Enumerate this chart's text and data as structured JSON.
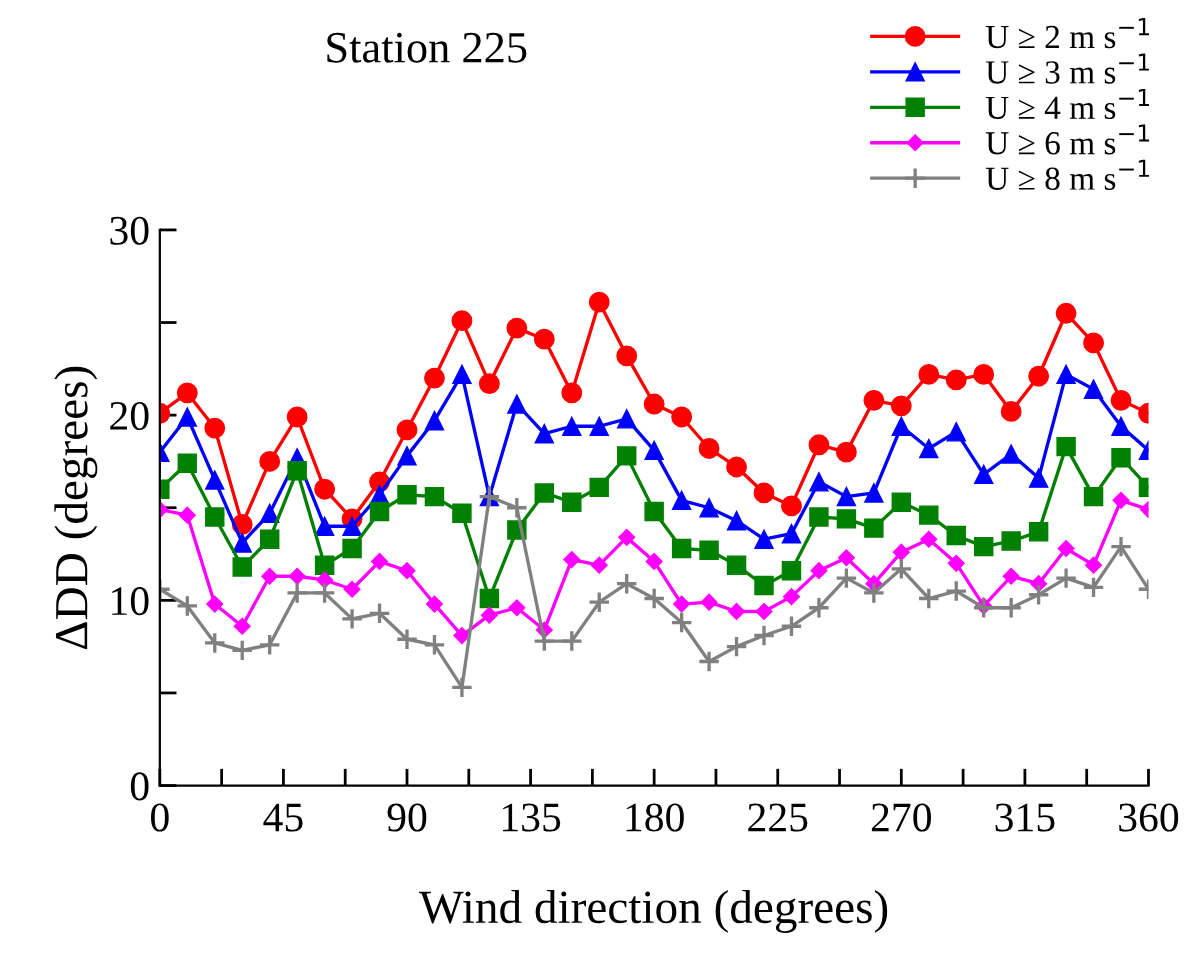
{
  "chart_data": {
    "type": "line",
    "title": "Station 225",
    "xlabel": "Wind direction (degrees)",
    "ylabel": "ΔDD (degrees)",
    "x": [
      0,
      10,
      20,
      30,
      40,
      50,
      60,
      70,
      80,
      90,
      100,
      110,
      120,
      130,
      140,
      150,
      160,
      170,
      180,
      190,
      200,
      210,
      220,
      230,
      240,
      250,
      260,
      270,
      280,
      290,
      300,
      310,
      320,
      330,
      340,
      350,
      360
    ],
    "xlim": [
      0,
      360
    ],
    "xticks": [
      0,
      {
        "value": 22.5,
        "label": null
      },
      45,
      {
        "value": 67.5,
        "label": null
      },
      90,
      {
        "value": 112.5,
        "label": null
      },
      135,
      {
        "value": 157.5,
        "label": null
      },
      180,
      {
        "value": 202.5,
        "label": null
      },
      225,
      {
        "value": 247.5,
        "label": null
      },
      270,
      {
        "value": 292.5,
        "label": null
      },
      315,
      {
        "value": 337.5,
        "label": null
      },
      360
    ],
    "ylim": [
      0,
      30
    ],
    "yticks": [
      0,
      {
        "value": 5,
        "label": null
      },
      10,
      {
        "value": 15,
        "label": null
      },
      20,
      {
        "value": 25,
        "label": null
      },
      30
    ],
    "grid": false,
    "legend": "top right",
    "line_style": "solid",
    "series": [
      {
        "name": "U ≥ 2 m s$^{−1}$",
        "color": "#ff0000",
        "marker": "circle",
        "values": [
          20.1,
          21.2,
          19.3,
          14.1,
          17.5,
          19.9,
          16.0,
          14.4,
          16.4,
          19.2,
          22.0,
          25.1,
          21.7,
          24.7,
          24.1,
          21.2,
          26.1,
          23.2,
          20.6,
          19.9,
          18.2,
          17.2,
          15.8,
          15.1,
          18.4,
          18.0,
          20.8,
          20.5,
          22.2,
          21.9,
          22.2,
          20.2,
          22.1,
          25.5,
          23.9,
          20.8,
          20.1
        ]
      },
      {
        "name": "U ≥ 3 m s$^{−1}$",
        "color": "#0000ff",
        "marker": "triangle",
        "values": [
          18.0,
          19.9,
          16.5,
          13.1,
          14.7,
          17.7,
          14.0,
          14.0,
          15.7,
          17.8,
          19.7,
          22.2,
          15.6,
          20.6,
          19.0,
          19.4,
          19.4,
          19.8,
          18.1,
          15.4,
          15.0,
          14.3,
          13.3,
          13.6,
          16.4,
          15.6,
          15.8,
          19.4,
          18.2,
          19.1,
          16.8,
          17.9,
          16.6,
          22.2,
          21.4,
          19.4,
          18.1
        ]
      },
      {
        "name": "U ≥ 4 m s$^{−1}$",
        "color": "#008000",
        "marker": "square",
        "values": [
          16.0,
          17.4,
          14.5,
          11.8,
          13.3,
          17.0,
          11.9,
          12.8,
          14.8,
          15.7,
          15.6,
          14.7,
          10.1,
          13.8,
          15.8,
          15.3,
          16.1,
          17.8,
          14.8,
          12.8,
          12.7,
          11.9,
          10.8,
          11.6,
          14.5,
          14.4,
          13.9,
          15.3,
          14.6,
          13.5,
          12.9,
          13.2,
          13.7,
          18.3,
          15.6,
          17.7,
          16.1
        ]
      },
      {
        "name": "U ≥ 6 m s$^{−1}$",
        "color": "#ff00ff",
        "marker": "diamond",
        "values": [
          14.9,
          14.6,
          9.8,
          8.6,
          11.3,
          11.3,
          11.1,
          10.6,
          12.1,
          11.6,
          9.8,
          8.1,
          9.2,
          9.6,
          8.4,
          12.2,
          11.9,
          13.4,
          12.1,
          9.8,
          9.9,
          9.4,
          9.4,
          10.2,
          11.6,
          12.3,
          10.9,
          12.6,
          13.3,
          12.0,
          9.7,
          11.3,
          10.9,
          12.8,
          11.9,
          15.4,
          14.9
        ]
      },
      {
        "name": "U ≥ 8 m s$^{−1}$",
        "color": "#808080",
        "marker": "cross",
        "values": [
          10.6,
          9.7,
          7.7,
          7.3,
          7.6,
          10.4,
          10.4,
          9.0,
          9.3,
          7.9,
          7.6,
          5.3,
          15.6,
          15.0,
          7.8,
          7.8,
          9.9,
          10.9,
          10.1,
          8.8,
          6.7,
          7.5,
          8.1,
          8.6,
          9.6,
          11.2,
          10.4,
          11.7,
          10.1,
          10.5,
          9.6,
          9.6,
          10.3,
          11.2,
          10.7,
          12.9,
          10.6
        ]
      }
    ]
  }
}
